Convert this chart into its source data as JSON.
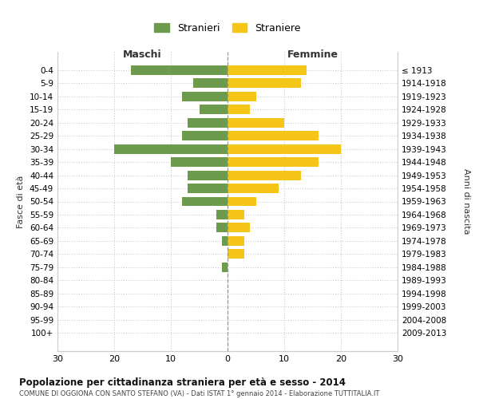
{
  "age_groups": [
    "0-4",
    "5-9",
    "10-14",
    "15-19",
    "20-24",
    "25-29",
    "30-34",
    "35-39",
    "40-44",
    "45-49",
    "50-54",
    "55-59",
    "60-64",
    "65-69",
    "70-74",
    "75-79",
    "80-84",
    "85-89",
    "90-94",
    "95-99",
    "100+"
  ],
  "birth_years": [
    "2009-2013",
    "2004-2008",
    "1999-2003",
    "1994-1998",
    "1989-1993",
    "1984-1988",
    "1979-1983",
    "1974-1978",
    "1969-1973",
    "1964-1968",
    "1959-1963",
    "1954-1958",
    "1949-1953",
    "1944-1948",
    "1939-1943",
    "1934-1938",
    "1929-1933",
    "1924-1928",
    "1919-1923",
    "1914-1918",
    "≤ 1913"
  ],
  "maschi": [
    17,
    6,
    8,
    5,
    7,
    8,
    20,
    10,
    7,
    7,
    8,
    2,
    2,
    1,
    0,
    1,
    0,
    0,
    0,
    0,
    0
  ],
  "femmine": [
    14,
    13,
    5,
    4,
    10,
    16,
    20,
    16,
    13,
    9,
    5,
    3,
    4,
    3,
    3,
    0,
    0,
    0,
    0,
    0,
    0
  ],
  "color_maschi": "#6d9b4e",
  "color_femmine": "#f5c518",
  "title": "Popolazione per cittadinanza straniera per età e sesso - 2014",
  "subtitle": "COMUNE DI OGGIONA CON SANTO STEFANO (VA) - Dati ISTAT 1° gennaio 2014 - Elaborazione TUTTITALIA.IT",
  "legend_maschi": "Stranieri",
  "legend_femmine": "Straniere",
  "xlabel_left": "Maschi",
  "xlabel_right": "Femmine",
  "ylabel_left": "Fasce di età",
  "ylabel_right": "Anni di nascita",
  "xlim": 30,
  "background_color": "#ffffff",
  "grid_color": "#cccccc"
}
